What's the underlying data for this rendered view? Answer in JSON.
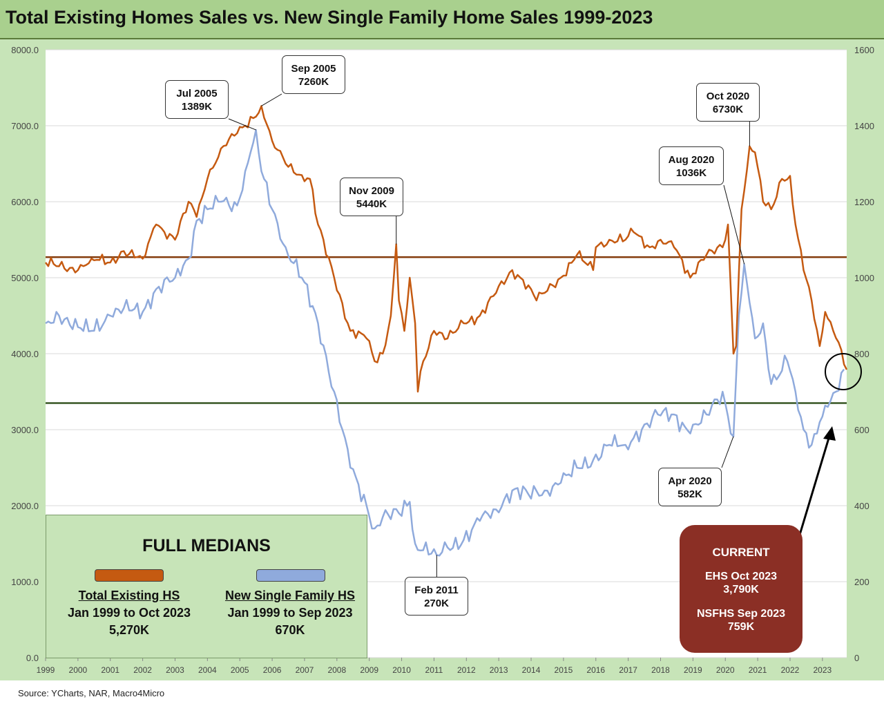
{
  "title": "Total Existing Homes Sales vs. New Single Family Home Sales 1999-2023",
  "source": "Source: YCharts, NAR, Macro4Micro",
  "colors": {
    "title_bg": "#a9d08e",
    "chart_bg": "#c7e4b8",
    "plot_bg": "#ffffff",
    "existing": "#c55a11",
    "new_single": "#8faadc",
    "existing_median_line": "#843c0c",
    "new_median_line": "#375623",
    "callout_blue": "#b4c6e7",
    "callout_orange": "#f4b183",
    "current_box": "#8b2f25"
  },
  "chart_data": {
    "type": "line",
    "x_range": [
      "Jan 1999",
      "Oct 2023"
    ],
    "x_ticks": [
      "1999",
      "2000",
      "2001",
      "2002",
      "2003",
      "2004",
      "2005",
      "2006",
      "2007",
      "2008",
      "2009",
      "2010",
      "2011",
      "2012",
      "2013",
      "2014",
      "2015",
      "2016",
      "2017",
      "2018",
      "2019",
      "2020",
      "2021",
      "2022",
      "2023"
    ],
    "y_left": {
      "range": [
        0,
        8000
      ],
      "ticks": [
        "0.0",
        "1000.0",
        "2000.0",
        "3000.0",
        "4000.0",
        "5000.0",
        "6000.0",
        "7000.0",
        "8000.0"
      ]
    },
    "y_right": {
      "range": [
        0,
        1600
      ],
      "ticks": [
        "0",
        "200",
        "400",
        "600",
        "800",
        "1000",
        "1200",
        "1400",
        "1600"
      ]
    },
    "grid": "horizontal",
    "series": [
      {
        "key": "existing",
        "axis": "left",
        "legend_ref": "medians.existing.label",
        "anchors": [
          [
            "1999-01",
            5200
          ],
          [
            "1999-06",
            5150
          ],
          [
            "2000-01",
            5100
          ],
          [
            "2000-06",
            5250
          ],
          [
            "2001-01",
            5200
          ],
          [
            "2001-06",
            5350
          ],
          [
            "2002-01",
            5250
          ],
          [
            "2002-06",
            5700
          ],
          [
            "2003-01",
            5500
          ],
          [
            "2003-06",
            6000
          ],
          [
            "2003-09",
            5800
          ],
          [
            "2004-01",
            6300
          ],
          [
            "2004-06",
            6700
          ],
          [
            "2004-12",
            6900
          ],
          [
            "2005-03",
            7000
          ],
          [
            "2005-06",
            7100
          ],
          [
            "2005-09",
            7260
          ],
          [
            "2006-01",
            6800
          ],
          [
            "2006-06",
            6500
          ],
          [
            "2006-12",
            6350
          ],
          [
            "2007-03",
            6300
          ],
          [
            "2007-06",
            5700
          ],
          [
            "2007-12",
            5000
          ],
          [
            "2008-06",
            4300
          ],
          [
            "2008-12",
            4200
          ],
          [
            "2009-03",
            3900
          ],
          [
            "2009-06",
            4000
          ],
          [
            "2009-09",
            4500
          ],
          [
            "2009-11",
            5440
          ],
          [
            "2009-12",
            4700
          ],
          [
            "2010-02",
            4300
          ],
          [
            "2010-04",
            5000
          ],
          [
            "2010-06",
            4400
          ],
          [
            "2010-07",
            3500
          ],
          [
            "2010-09",
            3900
          ],
          [
            "2011-01",
            4300
          ],
          [
            "2011-06",
            4200
          ],
          [
            "2011-12",
            4400
          ],
          [
            "2012-06",
            4500
          ],
          [
            "2012-12",
            4800
          ],
          [
            "2013-06",
            5100
          ],
          [
            "2013-12",
            4900
          ],
          [
            "2014-03",
            4700
          ],
          [
            "2014-06",
            4800
          ],
          [
            "2014-12",
            5000
          ],
          [
            "2015-06",
            5300
          ],
          [
            "2015-12",
            5100
          ],
          [
            "2016-01",
            5400
          ],
          [
            "2016-06",
            5500
          ],
          [
            "2016-12",
            5500
          ],
          [
            "2017-03",
            5600
          ],
          [
            "2017-09",
            5400
          ],
          [
            "2018-01",
            5500
          ],
          [
            "2018-06",
            5400
          ],
          [
            "2018-12",
            5000
          ],
          [
            "2019-03",
            5200
          ],
          [
            "2019-06",
            5300
          ],
          [
            "2019-12",
            5400
          ],
          [
            "2020-02",
            5700
          ],
          [
            "2020-04",
            4000
          ],
          [
            "2020-05",
            4100
          ],
          [
            "2020-07",
            5900
          ],
          [
            "2020-10",
            6730
          ],
          [
            "2020-12",
            6650
          ],
          [
            "2021-03",
            6000
          ],
          [
            "2021-06",
            5900
          ],
          [
            "2021-10",
            6300
          ],
          [
            "2022-01",
            6340
          ],
          [
            "2022-03",
            5700
          ],
          [
            "2022-06",
            5100
          ],
          [
            "2022-09",
            4700
          ],
          [
            "2022-12",
            4100
          ],
          [
            "2023-02",
            4550
          ],
          [
            "2023-05",
            4300
          ],
          [
            "2023-08",
            4050
          ],
          [
            "2023-10",
            3790
          ]
        ]
      },
      {
        "key": "new_single",
        "axis": "right",
        "legend_ref": "medians.new_single.label",
        "anchors": [
          [
            "1999-01",
            880
          ],
          [
            "1999-06",
            900
          ],
          [
            "2000-01",
            870
          ],
          [
            "2000-06",
            860
          ],
          [
            "2001-01",
            900
          ],
          [
            "2001-06",
            920
          ],
          [
            "2002-01",
            910
          ],
          [
            "2002-06",
            970
          ],
          [
            "2003-01",
            1000
          ],
          [
            "2003-06",
            1050
          ],
          [
            "2003-09",
            1150
          ],
          [
            "2004-01",
            1180
          ],
          [
            "2004-06",
            1200
          ],
          [
            "2004-12",
            1190
          ],
          [
            "2005-03",
            1280
          ],
          [
            "2005-07",
            1389
          ],
          [
            "2005-09",
            1280
          ],
          [
            "2006-01",
            1180
          ],
          [
            "2006-06",
            1080
          ],
          [
            "2006-12",
            1000
          ],
          [
            "2007-06",
            880
          ],
          [
            "2007-12",
            700
          ],
          [
            "2008-06",
            500
          ],
          [
            "2008-12",
            400
          ],
          [
            "2009-03",
            340
          ],
          [
            "2009-06",
            370
          ],
          [
            "2009-12",
            380
          ],
          [
            "2010-04",
            410
          ],
          [
            "2010-06",
            300
          ],
          [
            "2011-02",
            270
          ],
          [
            "2011-06",
            290
          ],
          [
            "2011-12",
            310
          ],
          [
            "2012-06",
            360
          ],
          [
            "2012-12",
            390
          ],
          [
            "2013-06",
            440
          ],
          [
            "2013-12",
            430
          ],
          [
            "2014-06",
            440
          ],
          [
            "2014-12",
            460
          ],
          [
            "2015-06",
            500
          ],
          [
            "2015-12",
            520
          ],
          [
            "2016-06",
            560
          ],
          [
            "2016-12",
            560
          ],
          [
            "2017-06",
            600
          ],
          [
            "2017-12",
            640
          ],
          [
            "2018-06",
            640
          ],
          [
            "2018-12",
            590
          ],
          [
            "2019-06",
            640
          ],
          [
            "2019-12",
            700
          ],
          [
            "2020-04",
            582
          ],
          [
            "2020-06",
            900
          ],
          [
            "2020-08",
            1036
          ],
          [
            "2020-12",
            840
          ],
          [
            "2021-03",
            880
          ],
          [
            "2021-06",
            720
          ],
          [
            "2021-12",
            780
          ],
          [
            "2022-03",
            700
          ],
          [
            "2022-06",
            600
          ],
          [
            "2022-09",
            560
          ],
          [
            "2022-12",
            620
          ],
          [
            "2023-03",
            660
          ],
          [
            "2023-06",
            700
          ],
          [
            "2023-09",
            759
          ]
        ]
      }
    ],
    "median_lines": [
      {
        "ref": "existing",
        "axis": "left",
        "value": 5270
      },
      {
        "ref": "new_single",
        "axis": "right",
        "value": 670
      }
    ],
    "callouts": [
      {
        "color": "blue",
        "lines": [
          "Jul 2005",
          "1389K"
        ],
        "point": [
          "2005-07",
          1389
        ],
        "axis": "right"
      },
      {
        "color": "orange",
        "lines": [
          "Sep 2005",
          "7260K"
        ],
        "point": [
          "2005-09",
          7260
        ],
        "axis": "left"
      },
      {
        "color": "orange",
        "lines": [
          "Nov 2009",
          "5440K"
        ],
        "point": [
          "2009-11",
          5440
        ],
        "axis": "left"
      },
      {
        "color": "blue",
        "lines": [
          "Feb 2011",
          "270K"
        ],
        "point": [
          "2011-02",
          270
        ],
        "axis": "right"
      },
      {
        "color": "orange",
        "lines": [
          "Oct 2020",
          "6730K"
        ],
        "point": [
          "2020-10",
          6730
        ],
        "axis": "left"
      },
      {
        "color": "blue",
        "lines": [
          "Aug 2020",
          "1036K"
        ],
        "point": [
          "2020-08",
          1036
        ],
        "axis": "right"
      },
      {
        "color": "blue",
        "lines": [
          "Apr 2020",
          "582K"
        ],
        "point": [
          "2020-04",
          582
        ],
        "axis": "right"
      }
    ]
  },
  "medians": {
    "title": "FULL MEDIANS",
    "existing": {
      "label": "Total Existing HS",
      "range": "Jan 1999 to Oct 2023",
      "value": "5,270K"
    },
    "new_single": {
      "label": "New Single Family HS",
      "range": "Jan 1999 to Sep 2023",
      "value": "670K"
    }
  },
  "current": {
    "heading": "CURRENT",
    "ehs_label": "EHS Oct 2023",
    "ehs_value": "3,790K",
    "nsfhs_label": "NSFHS Sep 2023",
    "nsfhs_value": "759K"
  }
}
